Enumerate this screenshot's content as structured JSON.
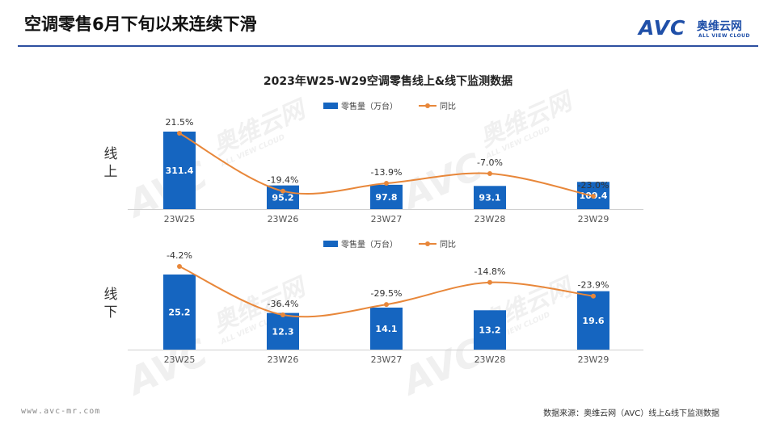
{
  "header": {
    "title": "空调零售6月下旬以来连续下滑",
    "brand_mark": "AVC",
    "brand_cn": "奥维云网",
    "brand_en": "ALL VIEW CLOUD"
  },
  "watermark": {
    "brand_mark": "AVC",
    "brand_cn": "奥维云网",
    "brand_en": "ALL VIEW CLOUD"
  },
  "footer": {
    "url": "www.avc-mr.com",
    "source": "数据来源：奥维云网（AVC）线上&线下监测数据"
  },
  "colors": {
    "bar": "#1565c0",
    "line": "#e8873a",
    "title_rule": "#2c4fa0"
  },
  "chart_data": [
    {
      "type": "bar",
      "title": "2023年W25-W29空调零售线上&线下监测数据",
      "panel_label": "线上",
      "categories": [
        "23W25",
        "23W26",
        "23W27",
        "23W28",
        "23W29"
      ],
      "series": [
        {
          "name": "零售量（万台）",
          "type": "bar",
          "values": [
            311.4,
            95.2,
            97.8,
            93.1,
            109.4
          ]
        },
        {
          "name": "同比",
          "type": "line",
          "values": [
            "21.5%",
            "-19.4%",
            "-13.9%",
            "-7.0%",
            "-23.0%"
          ],
          "numeric": [
            21.5,
            -19.4,
            -13.9,
            -7.0,
            -23.0
          ]
        }
      ],
      "legend": [
        "零售量（万台）",
        "同比"
      ],
      "legend_position": "top-center",
      "grid": false
    },
    {
      "type": "bar",
      "panel_label": "线下",
      "categories": [
        "23W25",
        "23W26",
        "23W27",
        "23W28",
        "23W29"
      ],
      "series": [
        {
          "name": "零售量（万台）",
          "type": "bar",
          "values": [
            25.2,
            12.3,
            14.1,
            13.2,
            19.6
          ]
        },
        {
          "name": "同比",
          "type": "line",
          "values": [
            "-4.2%",
            "-36.4%",
            "-29.5%",
            "-14.8%",
            "-23.9%"
          ],
          "numeric": [
            -4.2,
            -36.4,
            -29.5,
            -14.8,
            -23.9
          ]
        }
      ],
      "legend": [
        "零售量（万台）",
        "同比"
      ],
      "legend_position": "top-center",
      "grid": false
    }
  ]
}
